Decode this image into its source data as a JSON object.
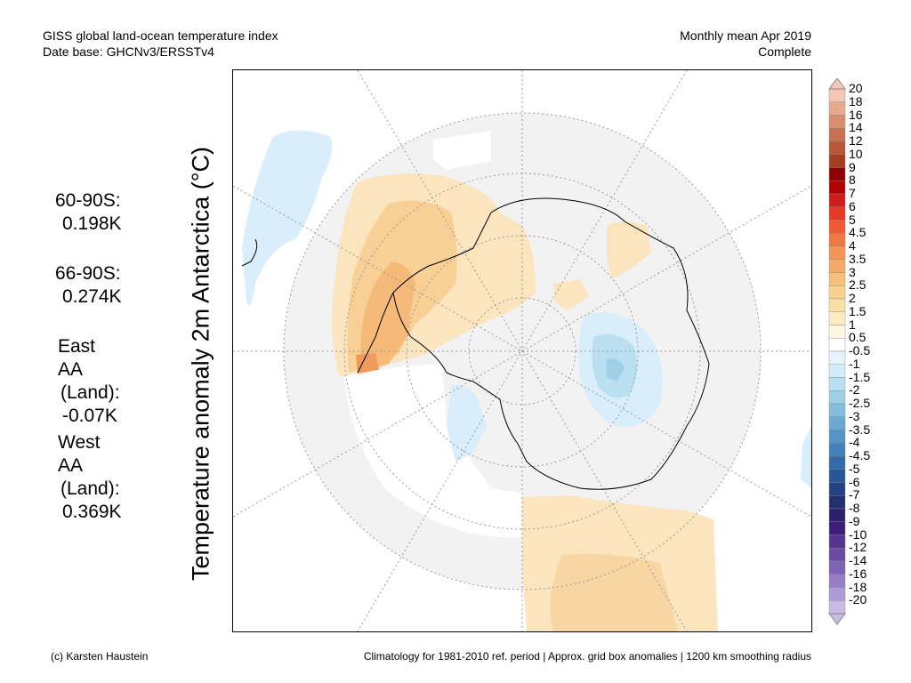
{
  "header": {
    "line1_left": "GISS global land-ocean temperature index",
    "line2_left": "Date base: GHCNv3/ERSSTv4",
    "line1_right": "Monthly mean Apr 2019",
    "line2_right": "Complete"
  },
  "y_axis_label": "Temperature anomaly 2m Antarctica (°C)",
  "stats": [
    {
      "lines": [
        "60-90S:",
        "0.198K"
      ]
    },
    {
      "lines": [
        "66-90S:",
        "0.274K"
      ]
    },
    {
      "lines": [
        "East AA",
        "(Land):",
        "-0.07K"
      ]
    },
    {
      "lines": [
        "West AA",
        "(Land):",
        "0.369K"
      ]
    }
  ],
  "colorbar": {
    "ticks": [
      "20",
      "18",
      "16",
      "14",
      "12",
      "10",
      "9",
      "8",
      "7",
      "6",
      "5",
      "4.5",
      "4",
      "3.5",
      "3",
      "2.5",
      "2",
      "1.5",
      "1",
      "0.5",
      "-0.5",
      "-1",
      "-1.5",
      "-2",
      "-2.5",
      "-3",
      "-3.5",
      "-4",
      "-4.5",
      "-5",
      "-6",
      "-7",
      "-8",
      "-9",
      "-10",
      "-12",
      "-14",
      "-16",
      "-18",
      "-20"
    ],
    "colors": [
      "#f4c7b4",
      "#e8a98c",
      "#d98e6d",
      "#c8704f",
      "#b85638",
      "#a53d22",
      "#8e0000",
      "#b30000",
      "#d11a1a",
      "#e53a2a",
      "#ee5a36",
      "#f07845",
      "#f49555",
      "#f5ab67",
      "#f7c07a",
      "#f8d28e",
      "#f9e0a7",
      "#fbecc3",
      "#fdf6e2",
      "#ffffff",
      "#e7f3fb",
      "#d3ecf8",
      "#b9dff0",
      "#9fcfe7",
      "#85bddc",
      "#6ba9d1",
      "#5595c6",
      "#437fb9",
      "#346aa9",
      "#285696",
      "#234183",
      "#22306f",
      "#2c1f6b",
      "#3c1e7a",
      "#55338f",
      "#6a4aa3",
      "#7f63b5",
      "#967ec6",
      "#ae9bd6",
      "#c8b9e5"
    ]
  },
  "footer": {
    "left": "(c) Karsten Haustein",
    "right": "Climatology for 1981-2010 ref. period | Approx. grid box anomalies | 1200 km smoothing radius"
  }
}
